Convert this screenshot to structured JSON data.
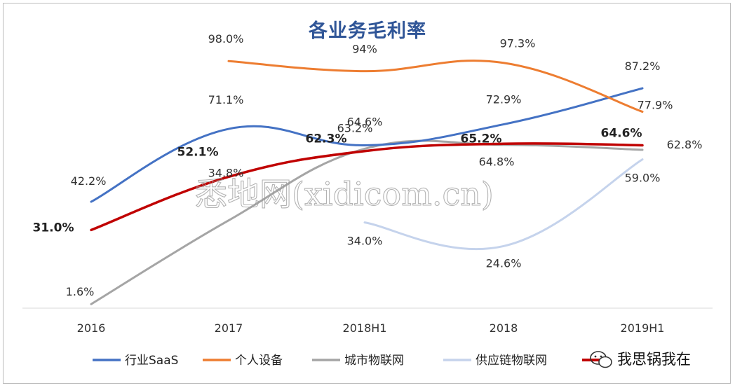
{
  "chart_data": {
    "type": "line",
    "title": "各业务毛利率",
    "categories": [
      "2016",
      "2017",
      "2018H1",
      "2018",
      "2019H1"
    ],
    "series": [
      {
        "name": "行业SaaS",
        "color": "#4472c4",
        "values": [
          42.2,
          71.1,
          64.6,
          72.9,
          87.2
        ],
        "labels": [
          "42.2%",
          "71.1%",
          "64.6%",
          "72.9%",
          "87.2%"
        ]
      },
      {
        "name": "个人设备",
        "color": "#ed7d31",
        "values": [
          null,
          98.0,
          94,
          97.3,
          77.9
        ],
        "labels": [
          null,
          "98.0%",
          "94%",
          "97.3%",
          "77.9%"
        ]
      },
      {
        "name": "城市物联网",
        "color": "#a5a5a5",
        "values": [
          1.6,
          34.8,
          63.2,
          64.8,
          62.8
        ],
        "labels": [
          "1.6%",
          "34.8%",
          "63.2%",
          "64.8%",
          "62.8%"
        ]
      },
      {
        "name": "供应链物联网",
        "color": "#c5d3ec",
        "values": [
          null,
          null,
          34.0,
          24.6,
          59.0
        ],
        "labels": [
          null,
          null,
          "34.0%",
          "24.6%",
          "59.0%"
        ]
      },
      {
        "name": "",
        "color": "#c00000",
        "values": [
          31.0,
          52.1,
          62.3,
          65.2,
          64.6
        ],
        "labels": [
          "31.0%",
          "52.1%",
          "62.3%",
          "65.2%",
          "64.6%"
        ],
        "bold_labels": true
      }
    ],
    "ylim": [
      0,
      110
    ],
    "grid": false,
    "legend_position": "bottom"
  },
  "watermark": "悉地网(xidicom.cn)",
  "wechat_tag": "我思锅我在"
}
